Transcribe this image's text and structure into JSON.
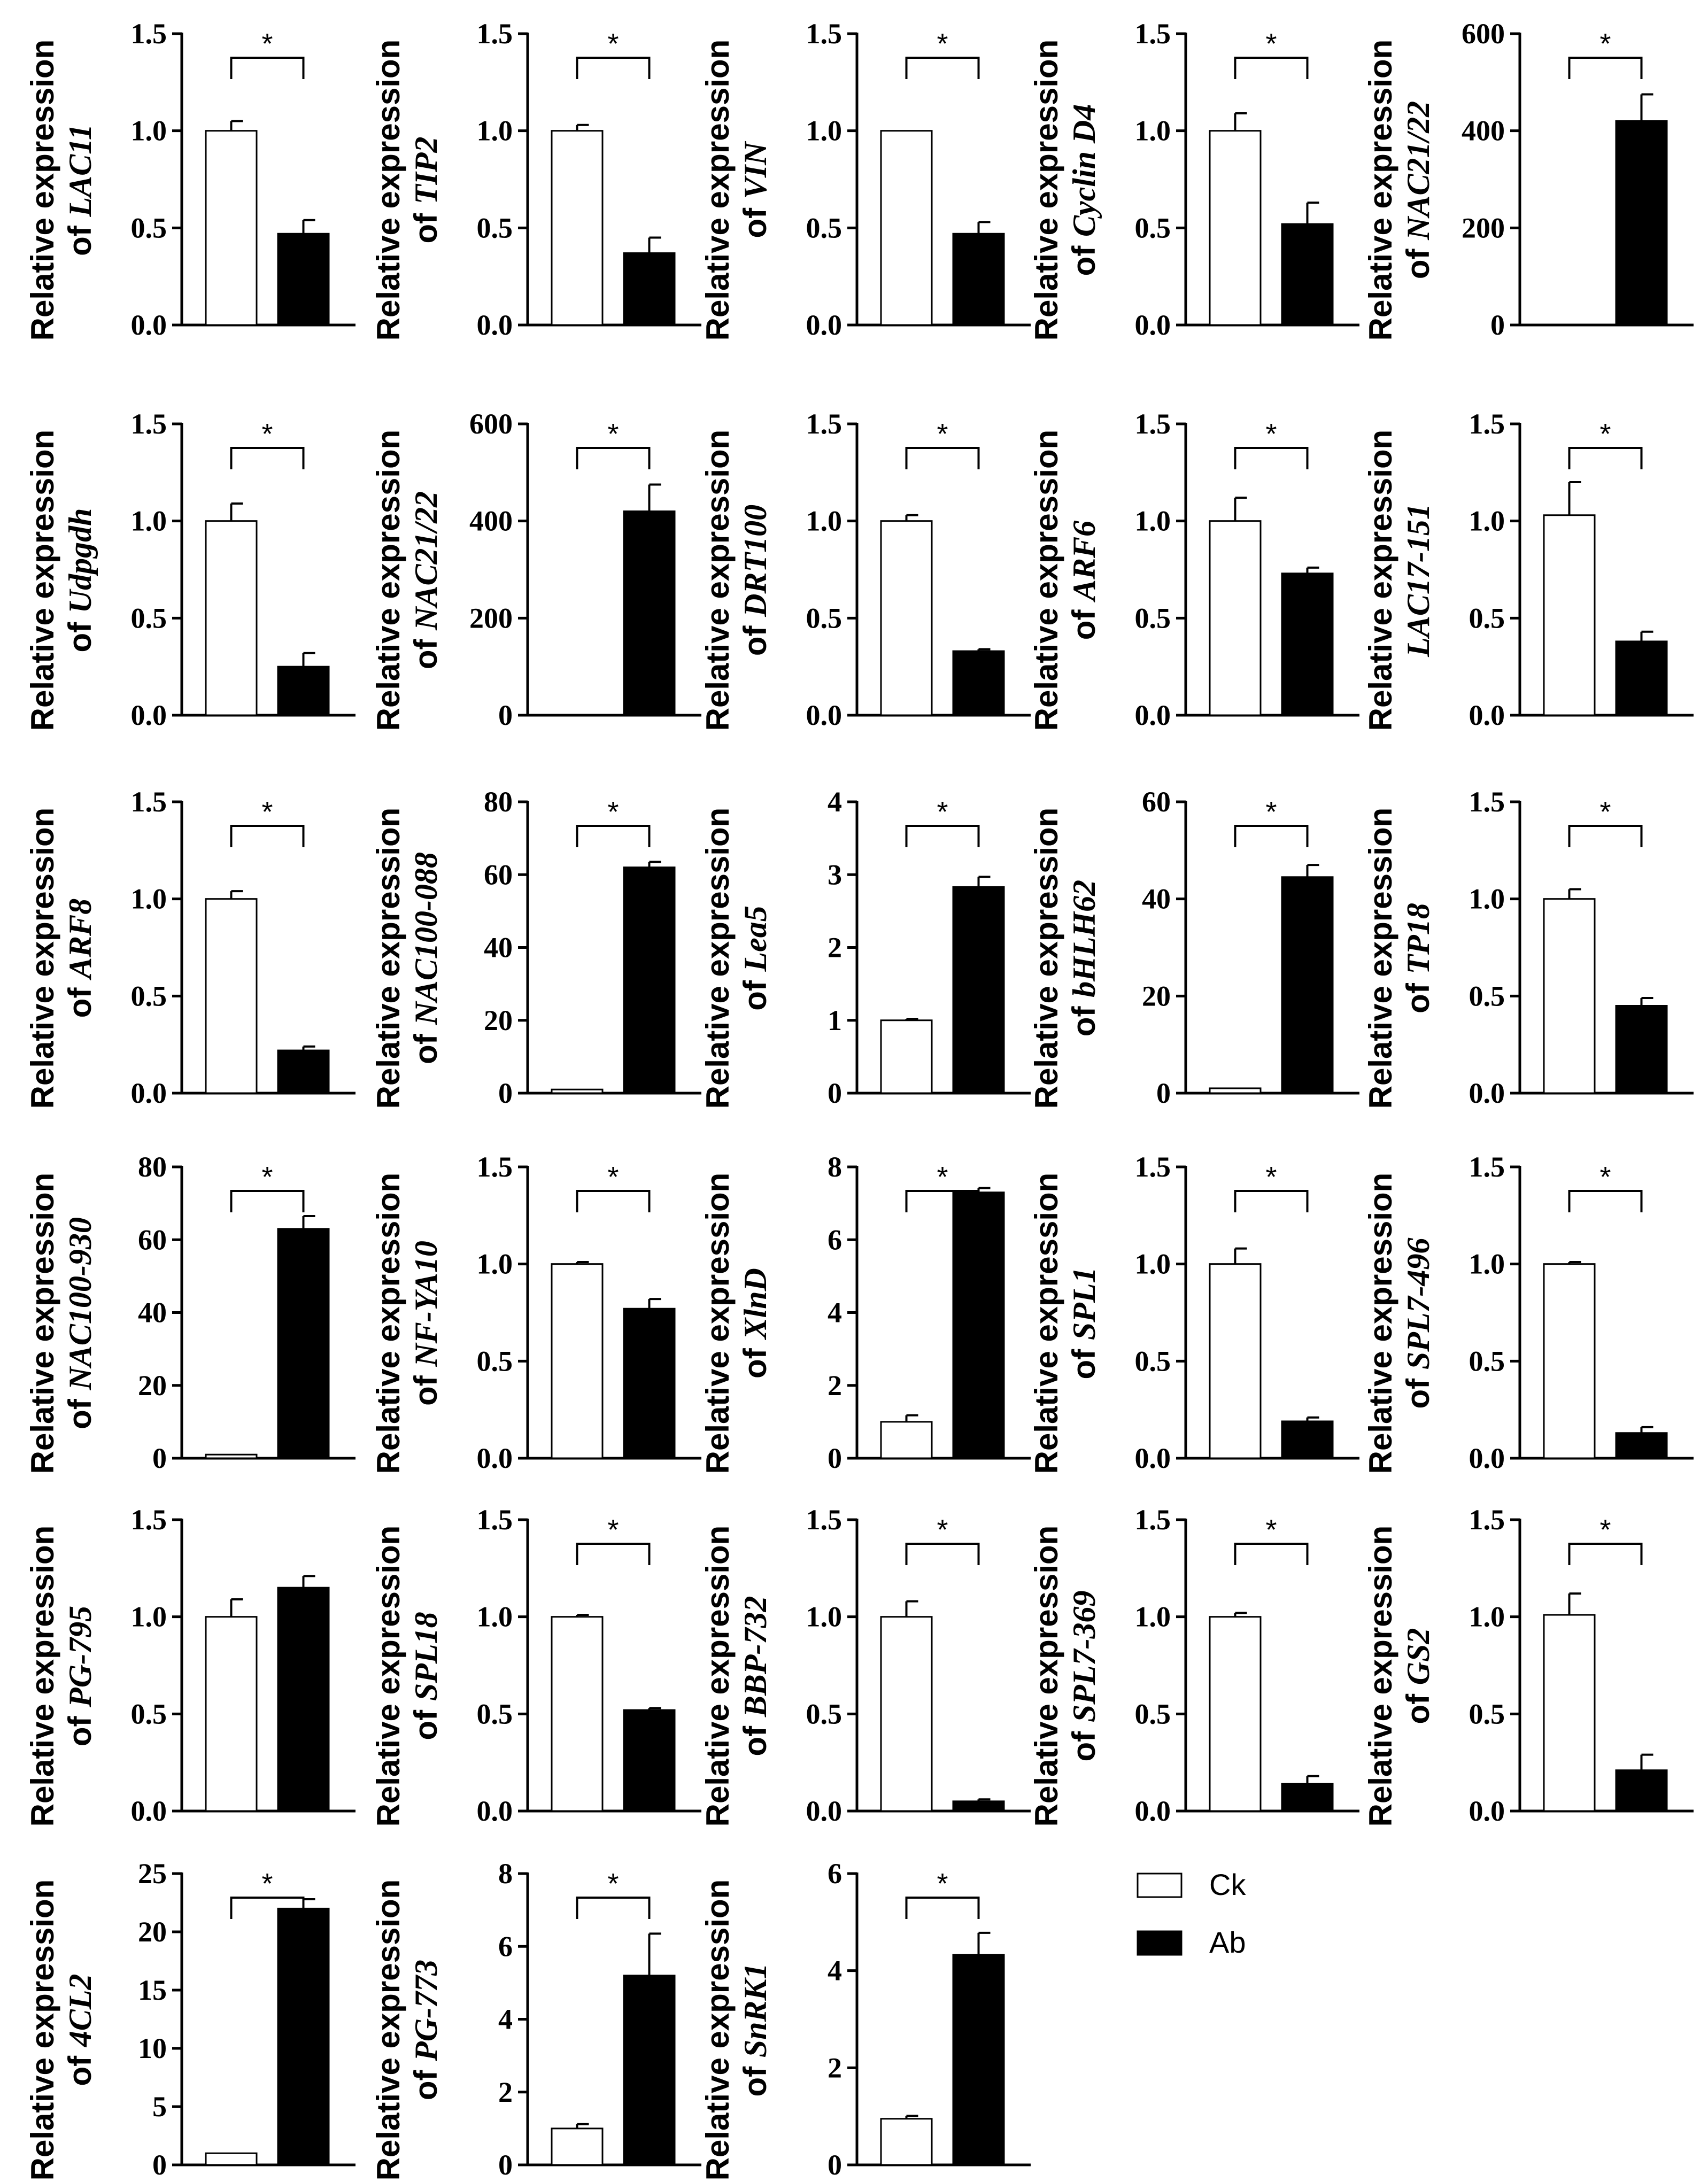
{
  "legend": [
    {
      "label": "Ck",
      "color": "#ffffff"
    },
    {
      "label": "Ab",
      "color": "#000000"
    }
  ],
  "ylabel_prefix": "Relative expression",
  "ylabel_of": "of",
  "significance_mark": "*",
  "chart_data": [
    {
      "type": "bar",
      "categories": [
        "Ck",
        "Ab"
      ],
      "gene": "LAC11",
      "label_style": "of-gene",
      "yticks": [
        "0.0",
        "0.5",
        "1.0",
        "1.5"
      ],
      "ylim": [
        0,
        1.5
      ],
      "values": [
        1.0,
        0.47
      ],
      "errors": [
        0.05,
        0.07
      ],
      "significant": true
    },
    {
      "type": "bar",
      "categories": [
        "Ck",
        "Ab"
      ],
      "gene": "TIP2",
      "label_style": "of-gene",
      "yticks": [
        "0.0",
        "0.5",
        "1.0",
        "1.5"
      ],
      "ylim": [
        0,
        1.5
      ],
      "values": [
        1.0,
        0.37
      ],
      "errors": [
        0.03,
        0.08
      ],
      "significant": true
    },
    {
      "type": "bar",
      "categories": [
        "Ck",
        "Ab"
      ],
      "gene": "VIN",
      "label_style": "of-gene",
      "yticks": [
        "0.0",
        "0.5",
        "1.0",
        "1.5"
      ],
      "ylim": [
        0,
        1.5
      ],
      "values": [
        1.0,
        0.47
      ],
      "errors": [
        0.0,
        0.06
      ],
      "significant": true
    },
    {
      "type": "bar",
      "categories": [
        "Ck",
        "Ab"
      ],
      "gene": "Cyclin D4",
      "label_style": "of-gene",
      "yticks": [
        "0.0",
        "0.5",
        "1.0",
        "1.5"
      ],
      "ylim": [
        0,
        1.5
      ],
      "values": [
        1.0,
        0.52
      ],
      "errors": [
        0.09,
        0.11
      ],
      "significant": true
    },
    {
      "type": "bar",
      "categories": [
        "Ck",
        "Ab"
      ],
      "gene": "NAC21/22",
      "label_style": "of-gene",
      "yticks": [
        "0",
        "200",
        "400",
        "600"
      ],
      "ylim": [
        0,
        600
      ],
      "values": [
        1,
        420
      ],
      "errors": [
        0,
        55
      ],
      "significant": true
    },
    {
      "type": "bar",
      "categories": [
        "Ck",
        "Ab"
      ],
      "gene": "Udpgdh",
      "label_style": "of-gene",
      "yticks": [
        "0.0",
        "0.5",
        "1.0",
        "1.5"
      ],
      "ylim": [
        0,
        1.5
      ],
      "values": [
        1.0,
        0.25
      ],
      "errors": [
        0.09,
        0.07
      ],
      "significant": true
    },
    {
      "type": "bar",
      "categories": [
        "Ck",
        "Ab"
      ],
      "gene": "NAC21/22",
      "label_style": "of-gene",
      "yticks": [
        "0",
        "200",
        "400",
        "600"
      ],
      "ylim": [
        0,
        600
      ],
      "values": [
        1,
        420
      ],
      "errors": [
        0,
        55
      ],
      "significant": true
    },
    {
      "type": "bar",
      "categories": [
        "Ck",
        "Ab"
      ],
      "gene": "DRT100",
      "label_style": "of-gene",
      "yticks": [
        "0.0",
        "0.5",
        "1.0",
        "1.5"
      ],
      "ylim": [
        0,
        1.5
      ],
      "values": [
        1.0,
        0.33
      ],
      "errors": [
        0.03,
        0.01
      ],
      "significant": true
    },
    {
      "type": "bar",
      "categories": [
        "Ck",
        "Ab"
      ],
      "gene": "ARF6",
      "label_style": "of-gene",
      "yticks": [
        "0.0",
        "0.5",
        "1.0",
        "1.5"
      ],
      "ylim": [
        0,
        1.5
      ],
      "values": [
        1.0,
        0.73
      ],
      "errors": [
        0.12,
        0.03
      ],
      "significant": true
    },
    {
      "type": "bar",
      "categories": [
        "Ck",
        "Ab"
      ],
      "gene": "LAC17-151",
      "label_style": "gene-only",
      "yticks": [
        "0.0",
        "0.5",
        "1.0",
        "1.5"
      ],
      "ylim": [
        0,
        1.5
      ],
      "values": [
        1.03,
        0.38
      ],
      "errors": [
        0.17,
        0.05
      ],
      "significant": true
    },
    {
      "type": "bar",
      "categories": [
        "Ck",
        "Ab"
      ],
      "gene": "ARF8",
      "label_style": "of-gene",
      "yticks": [
        "0.0",
        "0.5",
        "1.0",
        "1.5"
      ],
      "ylim": [
        0,
        1.5
      ],
      "values": [
        1.0,
        0.22
      ],
      "errors": [
        0.04,
        0.02
      ],
      "significant": true
    },
    {
      "type": "bar",
      "categories": [
        "Ck",
        "Ab"
      ],
      "gene": "NAC100-088",
      "label_style": "of-gene",
      "yticks": [
        "0",
        "20",
        "40",
        "60",
        "80"
      ],
      "ylim": [
        0,
        80
      ],
      "values": [
        1,
        62
      ],
      "errors": [
        0,
        1.5
      ],
      "significant": true
    },
    {
      "type": "bar",
      "categories": [
        "Ck",
        "Ab"
      ],
      "gene": "Lea5",
      "label_style": "of-gene",
      "yticks": [
        "0",
        "1",
        "2",
        "3",
        "4"
      ],
      "ylim": [
        0,
        4
      ],
      "values": [
        1.0,
        2.83
      ],
      "errors": [
        0.02,
        0.14
      ],
      "significant": true
    },
    {
      "type": "bar",
      "categories": [
        "Ck",
        "Ab"
      ],
      "gene": "bHLH62",
      "label_style": "of-gene",
      "yticks": [
        "0",
        "20",
        "40",
        "60"
      ],
      "ylim": [
        0,
        60
      ],
      "values": [
        1,
        44.5
      ],
      "errors": [
        0,
        2.5
      ],
      "significant": true
    },
    {
      "type": "bar",
      "categories": [
        "Ck",
        "Ab"
      ],
      "gene": "TP18",
      "label_style": "of-gene",
      "yticks": [
        "0.0",
        "0.5",
        "1.0",
        "1.5"
      ],
      "ylim": [
        0,
        1.5
      ],
      "values": [
        1.0,
        0.45
      ],
      "errors": [
        0.05,
        0.04
      ],
      "significant": true
    },
    {
      "type": "bar",
      "categories": [
        "Ck",
        "Ab"
      ],
      "gene": "NAC100-930",
      "label_style": "of-gene",
      "yticks": [
        "0",
        "20",
        "40",
        "60",
        "80"
      ],
      "ylim": [
        0,
        80
      ],
      "values": [
        1,
        63
      ],
      "errors": [
        0,
        3.5
      ],
      "significant": true
    },
    {
      "type": "bar",
      "categories": [
        "Ck",
        "Ab"
      ],
      "gene": "NF-YA10",
      "label_style": "of-gene",
      "yticks": [
        "0.0",
        "0.5",
        "1.0",
        "1.5"
      ],
      "ylim": [
        0,
        1.5
      ],
      "values": [
        1.0,
        0.77
      ],
      "errors": [
        0.01,
        0.05
      ],
      "significant": true
    },
    {
      "type": "bar",
      "categories": [
        "Ck",
        "Ab"
      ],
      "gene": "XlnD",
      "label_style": "of-gene",
      "yticks": [
        "0",
        "2",
        "4",
        "6",
        "8"
      ],
      "ylim": [
        0,
        8
      ],
      "values": [
        1.0,
        7.3
      ],
      "errors": [
        0.18,
        0.12
      ],
      "significant": true
    },
    {
      "type": "bar",
      "categories": [
        "Ck",
        "Ab"
      ],
      "gene": "SPL1",
      "label_style": "of-gene",
      "yticks": [
        "0.0",
        "0.5",
        "1.0",
        "1.5"
      ],
      "ylim": [
        0,
        1.5
      ],
      "values": [
        1.0,
        0.19
      ],
      "errors": [
        0.08,
        0.02
      ],
      "significant": true
    },
    {
      "type": "bar",
      "categories": [
        "Ck",
        "Ab"
      ],
      "gene": "SPL7-496",
      "label_style": "of-gene",
      "yticks": [
        "0.0",
        "0.5",
        "1.0",
        "1.5"
      ],
      "ylim": [
        0,
        1.5
      ],
      "values": [
        1.0,
        0.13
      ],
      "errors": [
        0.01,
        0.03
      ],
      "significant": true
    },
    {
      "type": "bar",
      "categories": [
        "Ck",
        "Ab"
      ],
      "gene": "PG-795",
      "label_style": "of-gene",
      "yticks": [
        "0.0",
        "0.5",
        "1.0",
        "1.5"
      ],
      "ylim": [
        0,
        1.5
      ],
      "values": [
        1.0,
        1.15
      ],
      "errors": [
        0.09,
        0.06
      ],
      "significant": false
    },
    {
      "type": "bar",
      "categories": [
        "Ck",
        "Ab"
      ],
      "gene": "SPL18",
      "label_style": "of-gene",
      "yticks": [
        "0.0",
        "0.5",
        "1.0",
        "1.5"
      ],
      "ylim": [
        0,
        1.5
      ],
      "values": [
        1.0,
        0.52
      ],
      "errors": [
        0.01,
        0.01
      ],
      "significant": true
    },
    {
      "type": "bar",
      "categories": [
        "Ck",
        "Ab"
      ],
      "gene": "BBP-732",
      "label_style": "of-gene",
      "yticks": [
        "0.0",
        "0.5",
        "1.0",
        "1.5"
      ],
      "ylim": [
        0,
        1.5
      ],
      "values": [
        1.0,
        0.05
      ],
      "errors": [
        0.08,
        0.01
      ],
      "significant": true
    },
    {
      "type": "bar",
      "categories": [
        "Ck",
        "Ab"
      ],
      "gene": "SPL7-369",
      "label_style": "of-gene",
      "yticks": [
        "0.0",
        "0.5",
        "1.0",
        "1.5"
      ],
      "ylim": [
        0,
        1.5
      ],
      "values": [
        1.0,
        0.14
      ],
      "errors": [
        0.02,
        0.04
      ],
      "significant": true
    },
    {
      "type": "bar",
      "categories": [
        "Ck",
        "Ab"
      ],
      "gene": "GS2",
      "label_style": "of-gene",
      "yticks": [
        "0.0",
        "0.5",
        "1.0",
        "1.5"
      ],
      "ylim": [
        0,
        1.5
      ],
      "values": [
        1.01,
        0.21
      ],
      "errors": [
        0.11,
        0.08
      ],
      "significant": true
    },
    {
      "type": "bar",
      "categories": [
        "Ck",
        "Ab"
      ],
      "gene": "4CL2",
      "label_style": "of-gene",
      "yticks": [
        "0",
        "5",
        "10",
        "15",
        "20",
        "25"
      ],
      "ylim": [
        0,
        25
      ],
      "values": [
        1,
        22
      ],
      "errors": [
        0,
        0.8
      ],
      "significant": true
    },
    {
      "type": "bar",
      "categories": [
        "Ck",
        "Ab"
      ],
      "gene": "PG-773",
      "label_style": "of-gene",
      "yticks": [
        "0",
        "2",
        "4",
        "6",
        "8"
      ],
      "ylim": [
        0,
        8
      ],
      "values": [
        1.0,
        5.2
      ],
      "errors": [
        0.12,
        1.15
      ],
      "significant": true
    },
    {
      "type": "bar",
      "categories": [
        "Ck",
        "Ab"
      ],
      "gene": "SnRK1",
      "label_style": "of-gene",
      "yticks": [
        "0",
        "2",
        "4",
        "6"
      ],
      "ylim": [
        0,
        6
      ],
      "values": [
        0.95,
        4.33
      ],
      "errors": [
        0.06,
        0.45
      ],
      "significant": true
    }
  ]
}
